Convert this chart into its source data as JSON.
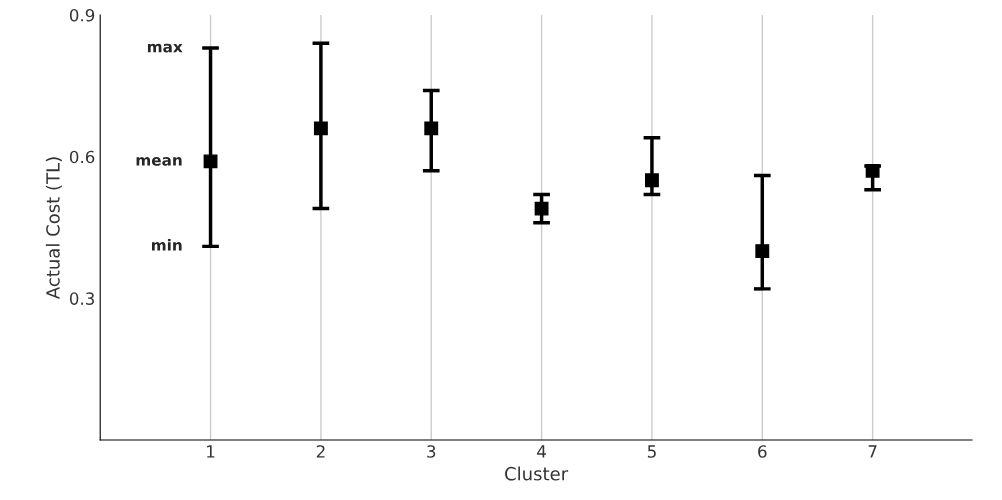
{
  "chart_data": {
    "type": "scatter",
    "xlabel": "Cluster",
    "ylabel": "Actual Cost (TL)",
    "categories": [
      "1",
      "2",
      "3",
      "4",
      "5",
      "6",
      "7"
    ],
    "series": [
      {
        "color": "#000000",
        "values": [
          0.59,
          0.66,
          0.66,
          0.49,
          0.55,
          0.4,
          0.57
        ],
        "errors": [
          [
            0.41,
            0.83
          ],
          [
            0.49,
            0.84
          ],
          [
            0.57,
            0.74
          ],
          [
            0.46,
            0.52
          ],
          [
            0.52,
            0.64
          ],
          [
            0.32,
            0.56
          ],
          [
            0.53,
            0.58
          ]
        ]
      }
    ],
    "ylim": [
      0,
      0.9
    ],
    "yticks": [
      0.3,
      0.6,
      0.9
    ],
    "grid": "x",
    "marker": "square",
    "annotations": [
      {
        "text": "max",
        "x": "1",
        "y": 0.83
      },
      {
        "text": "mean",
        "x": "1",
        "y": 0.59
      },
      {
        "text": "min",
        "x": "1",
        "y": 0.41
      }
    ]
  }
}
